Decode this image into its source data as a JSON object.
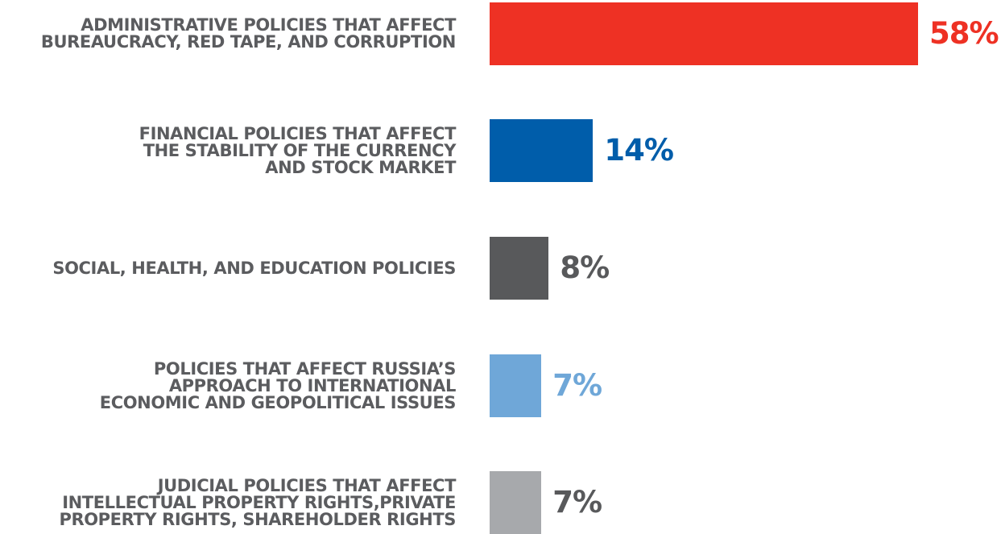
{
  "chart_data": {
    "type": "bar",
    "orientation": "horizontal",
    "categories": [
      "ADMINISTRATIVE POLICIES THAT AFFECT\nBUREAUCRACY, RED TAPE, AND CORRUPTION",
      "FINANCIAL POLICIES THAT AFFECT\nTHE STABILITY OF THE CURRENCY\nAND STOCK MARKET",
      "SOCIAL, HEALTH, AND EDUCATION POLICIES",
      "POLICIES THAT AFFECT RUSSIA’S\nAPPROACH TO INTERNATIONAL\nECONOMIC AND GEOPOLITICAL ISSUES",
      "JUDICIAL POLICIES THAT AFFECT\nINTELLECTUAL PROPERTY RIGHTS,PRIVATE\nPROPERTY RIGHTS, SHAREHOLDER RIGHTS"
    ],
    "values": [
      58,
      14,
      8,
      7,
      7
    ],
    "value_labels": [
      "58%",
      "14%",
      "8%",
      "7%",
      "7%"
    ],
    "colors": [
      "#ee3124",
      "#005daa",
      "#58595b",
      "#6fa7d8",
      "#a7a9ac"
    ],
    "label_colors": [
      "#ee3124",
      "#005daa",
      "#58595b",
      "#6fa7d8",
      "#58595b"
    ],
    "title": "",
    "xlabel": "",
    "ylabel": "",
    "xlim": [
      0,
      58
    ],
    "grid": false,
    "legend": "none"
  }
}
